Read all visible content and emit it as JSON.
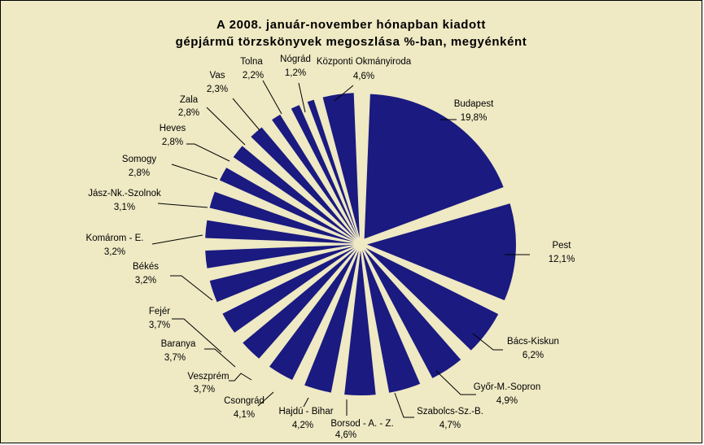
{
  "chart_data": {
    "type": "pie",
    "title": "A  2008. január-november hónapban kiadott",
    "subtitle": "gépjármű törzskönyvek megoszlása %-ban, megyénként",
    "colors": {
      "slice": "#1a1a80",
      "background": "#efe9c4",
      "leader": "#000000"
    },
    "legend": "none",
    "slices": [
      {
        "name": "Budapest",
        "pct_label": "19,8%",
        "value": 19.8,
        "exploded": true
      },
      {
        "name": "Pest",
        "pct_label": "12,1%",
        "value": 12.1,
        "exploded": true
      },
      {
        "name": "Bács-Kiskun",
        "pct_label": "6,2%",
        "value": 6.2,
        "exploded": true
      },
      {
        "name": "Győr-M.-Sopron",
        "pct_label": "4,9%",
        "value": 4.9,
        "exploded": true
      },
      {
        "name": "Szabolcs-Sz.-B.",
        "pct_label": "4,7%",
        "value": 4.7,
        "exploded": true
      },
      {
        "name": "Borsod - A. - Z.",
        "pct_label": "4,6%",
        "value": 4.6,
        "exploded": true
      },
      {
        "name": "Hajdú - Bihar",
        "pct_label": "4,2%",
        "value": 4.2,
        "exploded": true
      },
      {
        "name": "Csongrád",
        "pct_label": "4,1%",
        "value": 4.1,
        "exploded": true
      },
      {
        "name": "Veszprém",
        "pct_label": "3,7%",
        "value": 3.7,
        "exploded": true
      },
      {
        "name": "Baranya",
        "pct_label": "3,7%",
        "value": 3.7,
        "exploded": true
      },
      {
        "name": "Fejér",
        "pct_label": "3,7%",
        "value": 3.7,
        "exploded": true
      },
      {
        "name": "Békés",
        "pct_label": "3,2%",
        "value": 3.2,
        "exploded": true
      },
      {
        "name": "Komárom - E.",
        "pct_label": "3,2%",
        "value": 3.2,
        "exploded": true
      },
      {
        "name": "Jász-Nk.-Szolnok",
        "pct_label": "3,1%",
        "value": 3.1,
        "exploded": true
      },
      {
        "name": "Somogy",
        "pct_label": "2,8%",
        "value": 2.8,
        "exploded": true
      },
      {
        "name": "Heves",
        "pct_label": "2,8%",
        "value": 2.8,
        "exploded": true
      },
      {
        "name": "Zala",
        "pct_label": "2,8%",
        "value": 2.8,
        "exploded": true
      },
      {
        "name": "Vas",
        "pct_label": "2,3%",
        "value": 2.3,
        "exploded": true
      },
      {
        "name": "Tolna",
        "pct_label": "2,2%",
        "value": 2.2,
        "exploded": true
      },
      {
        "name": "Nógrád",
        "pct_label": "1,2%",
        "value": 1.2,
        "exploded": true
      },
      {
        "name": "Központi Okmányiroda",
        "pct_label": "4,6%",
        "value": 4.6,
        "exploded": true
      }
    ]
  }
}
